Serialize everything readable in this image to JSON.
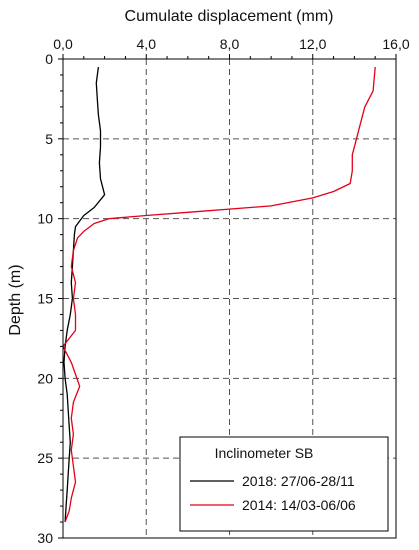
{
  "chart_data": {
    "type": "line",
    "orientation": "vertical-depth-profile",
    "xlabel": "Cumulate displacement (mm)",
    "ylabel": "Depth (m)",
    "xlim": [
      0,
      16
    ],
    "ylim": [
      0,
      30
    ],
    "y_inverted": true,
    "x_ticks": [
      0,
      4,
      8,
      12,
      16
    ],
    "x_tick_labels": [
      "0,0",
      "4,0",
      "8,0",
      "12,0",
      "16,0"
    ],
    "y_ticks": [
      0,
      5,
      10,
      15,
      20,
      25,
      30
    ],
    "y_tick_labels": [
      "0",
      "5",
      "10",
      "15",
      "20",
      "25",
      "30"
    ],
    "grid": true,
    "grid_style": "dashed",
    "legend": {
      "title": "Inclinometer SB",
      "position": "bottom-right"
    },
    "series": [
      {
        "name": "2018: 27/06-28/11",
        "color": "#000000",
        "points": [
          [
            1.7,
            0.5
          ],
          [
            1.6,
            1.5
          ],
          [
            1.65,
            2.5
          ],
          [
            1.7,
            3.5
          ],
          [
            1.8,
            4.5
          ],
          [
            1.8,
            5.5
          ],
          [
            1.75,
            6.5
          ],
          [
            1.8,
            7.5
          ],
          [
            2.0,
            8.5
          ],
          [
            1.5,
            9.3
          ],
          [
            1.0,
            9.8
          ],
          [
            0.6,
            10.5
          ],
          [
            0.55,
            11.0
          ],
          [
            0.5,
            12.0
          ],
          [
            0.45,
            13.0
          ],
          [
            0.4,
            14.0
          ],
          [
            0.45,
            15.0
          ],
          [
            0.35,
            16.0
          ],
          [
            0.2,
            17.0
          ],
          [
            0.1,
            18.0
          ],
          [
            0.05,
            19.0
          ],
          [
            0.1,
            20.0
          ],
          [
            0.2,
            21.0
          ],
          [
            0.25,
            22.0
          ],
          [
            0.3,
            23.0
          ],
          [
            0.35,
            24.0
          ],
          [
            0.3,
            25.0
          ],
          [
            0.25,
            26.0
          ],
          [
            0.2,
            27.0
          ],
          [
            0.15,
            28.0
          ],
          [
            0.1,
            29.0
          ]
        ]
      },
      {
        "name": "2014: 14/03-06/06",
        "color": "#e3001b",
        "points": [
          [
            15.0,
            0.5
          ],
          [
            14.9,
            2.0
          ],
          [
            14.5,
            3.0
          ],
          [
            14.3,
            4.0
          ],
          [
            14.1,
            5.0
          ],
          [
            13.9,
            6.0
          ],
          [
            13.9,
            7.0
          ],
          [
            13.8,
            7.8
          ],
          [
            13.0,
            8.3
          ],
          [
            12.0,
            8.7
          ],
          [
            10.0,
            9.2
          ],
          [
            6.0,
            9.6
          ],
          [
            4.0,
            9.8
          ],
          [
            2.2,
            10.0
          ],
          [
            1.5,
            10.3
          ],
          [
            1.0,
            10.8
          ],
          [
            0.7,
            11.2
          ],
          [
            0.5,
            12.0
          ],
          [
            0.4,
            13.0
          ],
          [
            0.6,
            14.0
          ],
          [
            0.5,
            15.0
          ],
          [
            0.6,
            16.0
          ],
          [
            0.6,
            17.0
          ],
          [
            0.0,
            18.0
          ],
          [
            0.4,
            19.0
          ],
          [
            0.8,
            20.5
          ],
          [
            0.5,
            21.5
          ],
          [
            0.4,
            22.5
          ],
          [
            0.5,
            23.5
          ],
          [
            0.4,
            24.5
          ],
          [
            0.5,
            25.5
          ],
          [
            0.6,
            26.5
          ],
          [
            0.4,
            27.5
          ],
          [
            0.3,
            28.3
          ],
          [
            0.1,
            29.0
          ]
        ]
      }
    ]
  }
}
